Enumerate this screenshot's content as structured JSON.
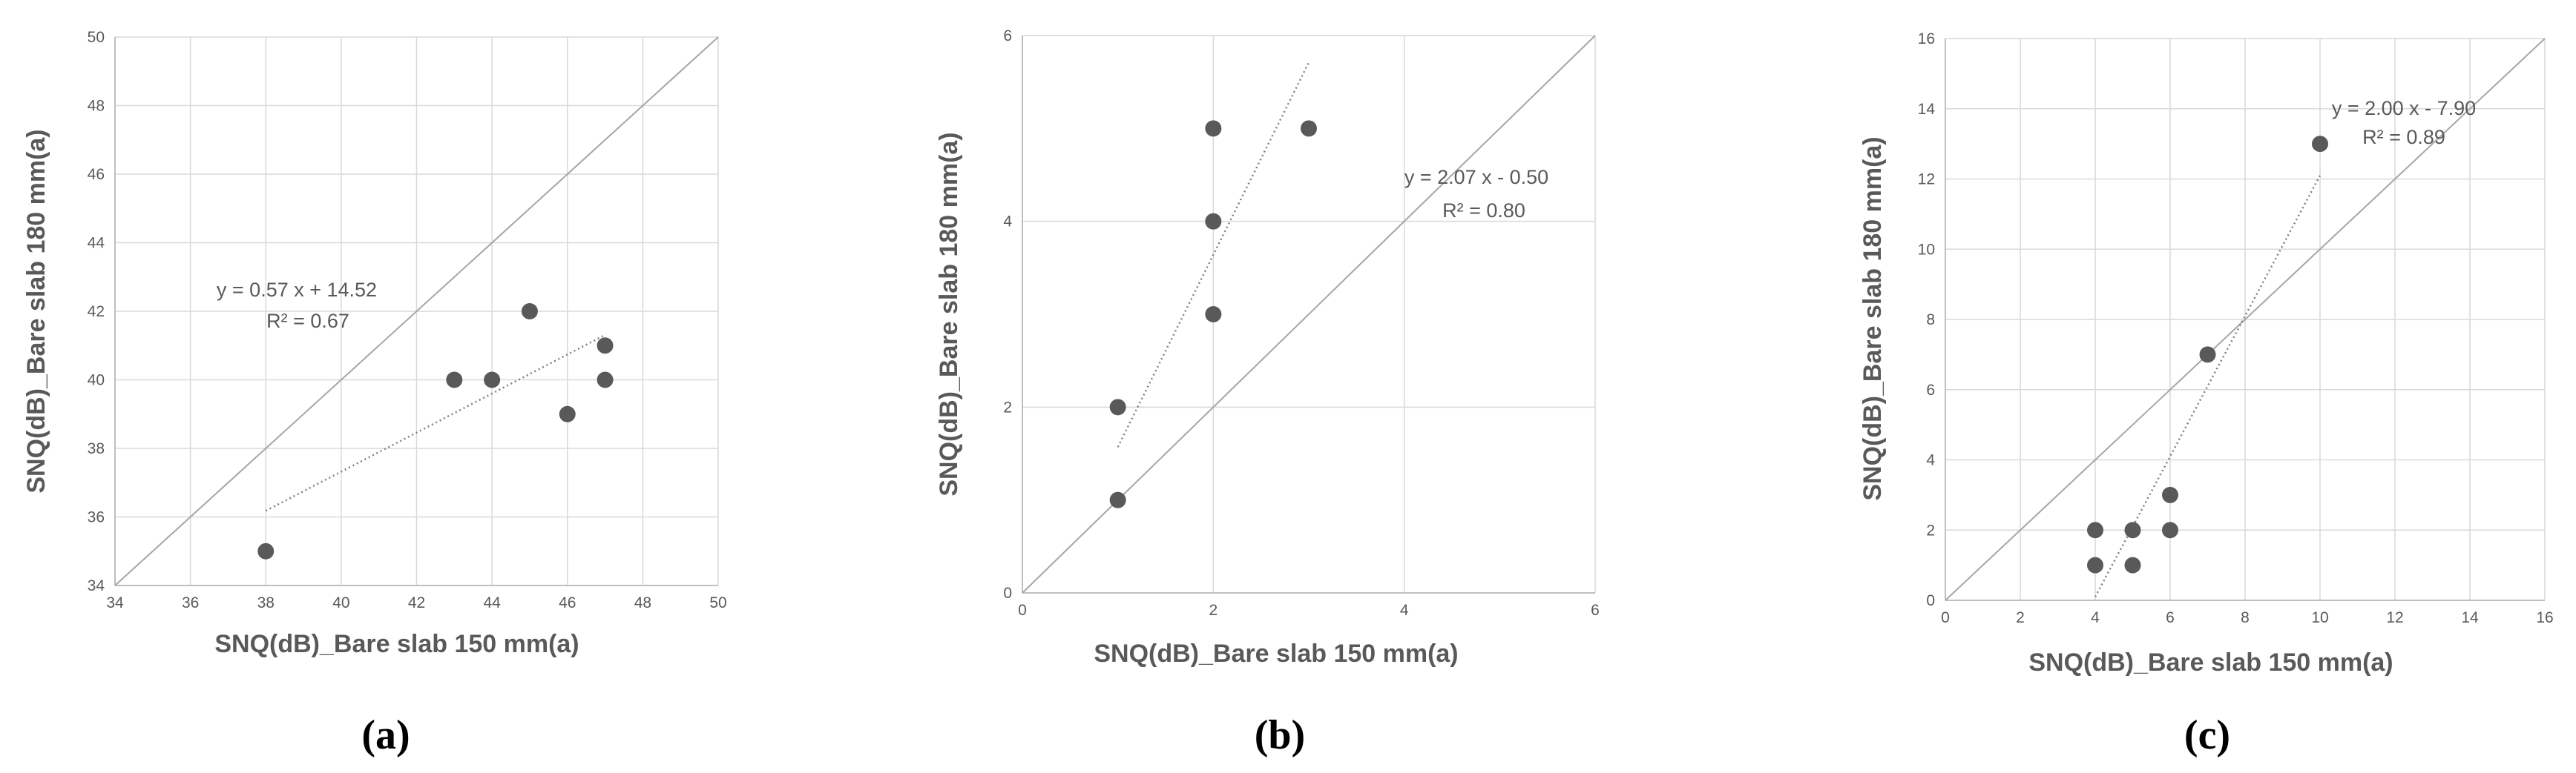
{
  "chart_data": [
    {
      "type": "scatter",
      "panel_label": "(a)",
      "xlabel": "SNQ(dB)_Bare slab 150 mm(a)",
      "ylabel": "SNQ(dB)_Bare slab 180 mm(a)",
      "xlim": [
        34,
        50
      ],
      "ylim": [
        34,
        50
      ],
      "xticks": [
        "34",
        "36",
        "38",
        "40",
        "42",
        "44",
        "46",
        "48",
        "50"
      ],
      "yticks": [
        "34",
        "36",
        "38",
        "40",
        "42",
        "44",
        "46",
        "48",
        "50"
      ],
      "grid": true,
      "points": [
        {
          "x": 38,
          "y": 35
        },
        {
          "x": 43,
          "y": 40
        },
        {
          "x": 44,
          "y": 40
        },
        {
          "x": 45,
          "y": 42
        },
        {
          "x": 46,
          "y": 39
        },
        {
          "x": 47,
          "y": 41
        },
        {
          "x": 47,
          "y": 40
        }
      ],
      "trendline": {
        "slope": 0.57,
        "intercept": 14.52,
        "x_range": [
          38,
          47
        ],
        "equation": "y = 0.57 x + 14.52",
        "r2": "R² = 0.67"
      },
      "reference_line": {
        "slope": 1,
        "intercept": 0
      }
    },
    {
      "type": "scatter",
      "panel_label": "(b)",
      "xlabel": "SNQ(dB)_Bare slab 150 mm(a)",
      "ylabel": "SNQ(dB)_Bare slab 180 mm(a)",
      "xlim": [
        0,
        6
      ],
      "ylim": [
        0,
        6
      ],
      "xticks": [
        "0",
        "2",
        "4",
        "6"
      ],
      "yticks": [
        "0",
        "2",
        "4",
        "6"
      ],
      "grid": true,
      "points": [
        {
          "x": 1,
          "y": 1
        },
        {
          "x": 1,
          "y": 2
        },
        {
          "x": 2,
          "y": 3
        },
        {
          "x": 2,
          "y": 4
        },
        {
          "x": 2,
          "y": 5
        },
        {
          "x": 3,
          "y": 5
        }
      ],
      "trendline": {
        "slope": 2.07,
        "intercept": -0.5,
        "x_range": [
          1,
          3
        ],
        "equation": "y = 2.07 x - 0.50",
        "r2": "R² = 0.80"
      },
      "reference_line": {
        "slope": 1,
        "intercept": 0
      }
    },
    {
      "type": "scatter",
      "panel_label": "(c)",
      "xlabel": "SNQ(dB)_Bare slab 150 mm(a)",
      "ylabel": "SNQ(dB)_Bare slab 180 mm(a)",
      "xlim": [
        0,
        16
      ],
      "ylim": [
        0,
        16
      ],
      "xticks": [
        "0",
        "2",
        "4",
        "6",
        "8",
        "10",
        "12",
        "14",
        "16"
      ],
      "yticks": [
        "0",
        "2",
        "4",
        "6",
        "8",
        "10",
        "12",
        "14",
        "16"
      ],
      "grid": true,
      "points": [
        {
          "x": 4,
          "y": 1
        },
        {
          "x": 4,
          "y": 2
        },
        {
          "x": 5,
          "y": 1
        },
        {
          "x": 5,
          "y": 2
        },
        {
          "x": 6,
          "y": 2
        },
        {
          "x": 6,
          "y": 3
        },
        {
          "x": 7,
          "y": 7
        },
        {
          "x": 10,
          "y": 13
        }
      ],
      "trendline": {
        "slope": 2.0,
        "intercept": -7.9,
        "x_range": [
          4,
          10
        ],
        "equation": "y = 2.00 x - 7.90",
        "r2": "R² = 0.89"
      },
      "reference_line": {
        "slope": 1,
        "intercept": 0
      }
    }
  ],
  "colors": {
    "marker": "#595959",
    "trend": "#7f7f7f",
    "reference": "#a6a6a6",
    "grid": "#d9d9d9",
    "axis": "#bfbfbf",
    "text": "#595959"
  }
}
